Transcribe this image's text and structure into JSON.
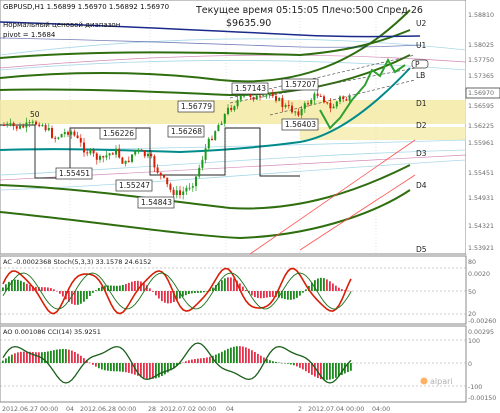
{
  "header": {
    "symbol_line": "GBPUSD,H1  1.56899 1.56970 1.56892 1.56970",
    "channel_label": "Нормальный ценовой диапазон",
    "pivot_label": "pivot = 1.5684",
    "overlay_line1": "Текущее время 05:15:05 Плечо:500 Спред 26",
    "overlay_line2": "$9635.90"
  },
  "levels": {
    "U2": "U2",
    "U1": "U1",
    "P": "P",
    "LB": "LB",
    "D1": "D1",
    "D2": "D2",
    "D3": "D3",
    "D4": "D4",
    "D5": "D5"
  },
  "price_axis": [
    "1.58810",
    "1.58025",
    "1.57750",
    "1.57365",
    "1.56970",
    "1.56595",
    "1.56225",
    "1.55961",
    "1.55451",
    "1.54931",
    "1.54321",
    "1.53921"
  ],
  "current_price": "1.56970",
  "price_boxes": {
    "b1": "1.57143",
    "b2": "1.57207",
    "b3": "1.56779",
    "b4": "1.56268",
    "b5": "1.56226",
    "b6": "1.56403",
    "b7": "1.55451",
    "b8": "1.55247",
    "b9": "1.54843",
    "b10": "50"
  },
  "ac_panel": {
    "label": "AC -0.0002368  Stoch(5,3,3) 33.1578 24.6152",
    "axis": [
      "80",
      "50",
      "20",
      "0.0020",
      "-0.00260"
    ],
    "colors": {
      "stoch_main": "#d81e05",
      "stoch_signal": "#1a6e1a",
      "bar_up": "#1a8a1a",
      "bar_down": "#e4324a"
    }
  },
  "ao_panel": {
    "label": "AO 0.001086  CCI(14) 35.9251",
    "axis": [
      "0.00295",
      "100",
      "0",
      "-100",
      "-0.00150"
    ],
    "colors": {
      "cci": "#1a5e1a",
      "bar_up": "#1a8a1a",
      "bar_down": "#e4324a"
    }
  },
  "time_axis": [
    "2012.06.27 00:00",
    "04",
    "2012.06.28 00:00",
    "28",
    "2012.07.02 00:00",
    "04",
    "2",
    "2012.07.04 00:00",
    "04:00"
  ],
  "watermark": "alpari",
  "colors": {
    "candle_up": "#1a9a1a",
    "candle_down": "#d81e05",
    "band_outer": "#2e6e0e",
    "ema": "#008b8b",
    "support_zone": "#f3e79a",
    "diag_up": "#ff5050"
  }
}
